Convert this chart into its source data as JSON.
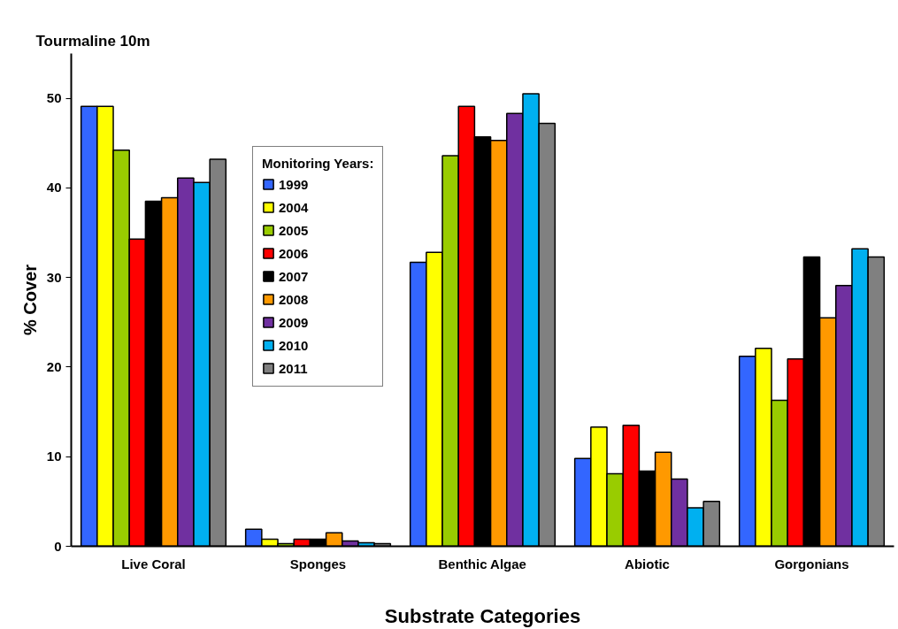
{
  "chart_data": {
    "type": "bar",
    "title": "Tourmaline 10m",
    "xlabel": "Substrate Categories",
    "ylabel": "% Cover",
    "legend_title": "Monitoring Years:",
    "categories": [
      "Live Coral",
      "Sponges",
      "Benthic Algae",
      "Abiotic",
      "Gorgonians"
    ],
    "series": [
      {
        "name": "1999",
        "color": "#3366ff",
        "values": [
          49.1,
          1.9,
          31.7,
          9.8,
          21.2
        ]
      },
      {
        "name": "2004",
        "color": "#ffff00",
        "values": [
          49.1,
          0.8,
          32.8,
          13.3,
          22.1
        ]
      },
      {
        "name": "2005",
        "color": "#99cc00",
        "values": [
          44.2,
          0.3,
          43.6,
          8.1,
          16.3
        ]
      },
      {
        "name": "2006",
        "color": "#ff0000",
        "values": [
          34.3,
          0.8,
          49.1,
          13.5,
          20.9
        ]
      },
      {
        "name": "2007",
        "color": "#000000",
        "values": [
          38.5,
          0.8,
          45.7,
          8.4,
          32.3
        ]
      },
      {
        "name": "2008",
        "color": "#ff9900",
        "values": [
          38.9,
          1.5,
          45.3,
          10.5,
          25.5
        ]
      },
      {
        "name": "2009",
        "color": "#7030a0",
        "values": [
          41.1,
          0.6,
          48.3,
          7.5,
          29.1
        ]
      },
      {
        "name": "2010",
        "color": "#00b0f0",
        "values": [
          40.6,
          0.4,
          50.5,
          4.3,
          33.2
        ]
      },
      {
        "name": "2011",
        "color": "#808080",
        "values": [
          43.2,
          0.3,
          47.2,
          5.0,
          32.3
        ]
      }
    ],
    "ylim": [
      0,
      55
    ],
    "yticks": [
      0,
      10,
      20,
      30,
      40,
      50
    ],
    "grid": false,
    "legend": "top left"
  }
}
